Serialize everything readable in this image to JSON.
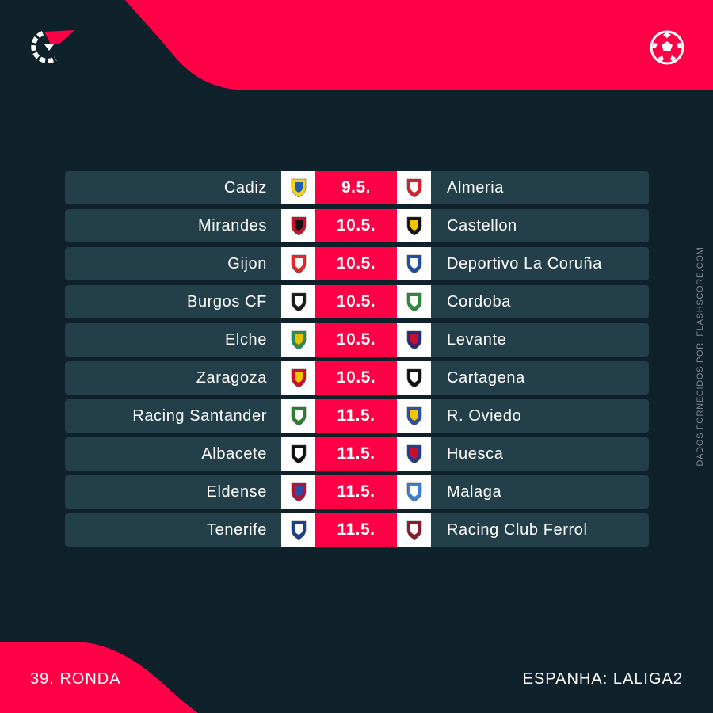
{
  "brand": {
    "logo_icon": "flashscore-logo-icon",
    "sport_icon": "football-icon",
    "accent": "#ff0046",
    "background": "#0f212a",
    "row_color": "#23404a"
  },
  "credit": "DADOS FORNECIDOS POR: FLASHSCORE.COM",
  "footer": {
    "round": "39. RONDA",
    "league": "ESPANHA: LALIGA2"
  },
  "fixtures": [
    {
      "home": "Cadiz",
      "date": "9.5.",
      "away": "Almeria",
      "home_crest": [
        "#f6d21a",
        "#1d5fb0"
      ],
      "away_crest": [
        "#d8202a",
        "#ffffff"
      ]
    },
    {
      "home": "Mirandes",
      "date": "10.5.",
      "away": "Castellon",
      "home_crest": [
        "#c8102e",
        "#111111"
      ],
      "away_crest": [
        "#111111",
        "#f2c500"
      ]
    },
    {
      "home": "Gijon",
      "date": "10.5.",
      "away": "Deportivo La Coruña",
      "home_crest": [
        "#e02a2a",
        "#ffffff"
      ],
      "away_crest": [
        "#1f4fa3",
        "#ffffff"
      ]
    },
    {
      "home": "Burgos CF",
      "date": "10.5.",
      "away": "Cordoba",
      "home_crest": [
        "#1a1a1a",
        "#ffffff"
      ],
      "away_crest": [
        "#2e8b3a",
        "#ffffff"
      ]
    },
    {
      "home": "Elche",
      "date": "10.5.",
      "away": "Levante",
      "home_crest": [
        "#2e8b57",
        "#e6c200"
      ],
      "away_crest": [
        "#2a2a7a",
        "#c8102e"
      ]
    },
    {
      "home": "Zaragoza",
      "date": "10.5.",
      "away": "Cartagena",
      "home_crest": [
        "#c8102e",
        "#f2c500"
      ],
      "away_crest": [
        "#111111",
        "#ffffff"
      ]
    },
    {
      "home": "Racing Santander",
      "date": "11.5.",
      "away": "R. Oviedo",
      "home_crest": [
        "#2e7d32",
        "#ffffff"
      ],
      "away_crest": [
        "#2a4fa3",
        "#f2c500"
      ]
    },
    {
      "home": "Albacete",
      "date": "11.5.",
      "away": "Huesca",
      "home_crest": [
        "#111111",
        "#ffffff"
      ],
      "away_crest": [
        "#1d3f8c",
        "#c8102e"
      ]
    },
    {
      "home": "Eldense",
      "date": "11.5.",
      "away": "Malaga",
      "home_crest": [
        "#b0123a",
        "#2a4fa3"
      ],
      "away_crest": [
        "#3b7fd0",
        "#ffffff"
      ]
    },
    {
      "home": "Tenerife",
      "date": "11.5.",
      "away": "Racing Club Ferrol",
      "home_crest": [
        "#1d3f8c",
        "#ffffff"
      ],
      "away_crest": [
        "#8b1a2a",
        "#ffffff"
      ]
    }
  ]
}
